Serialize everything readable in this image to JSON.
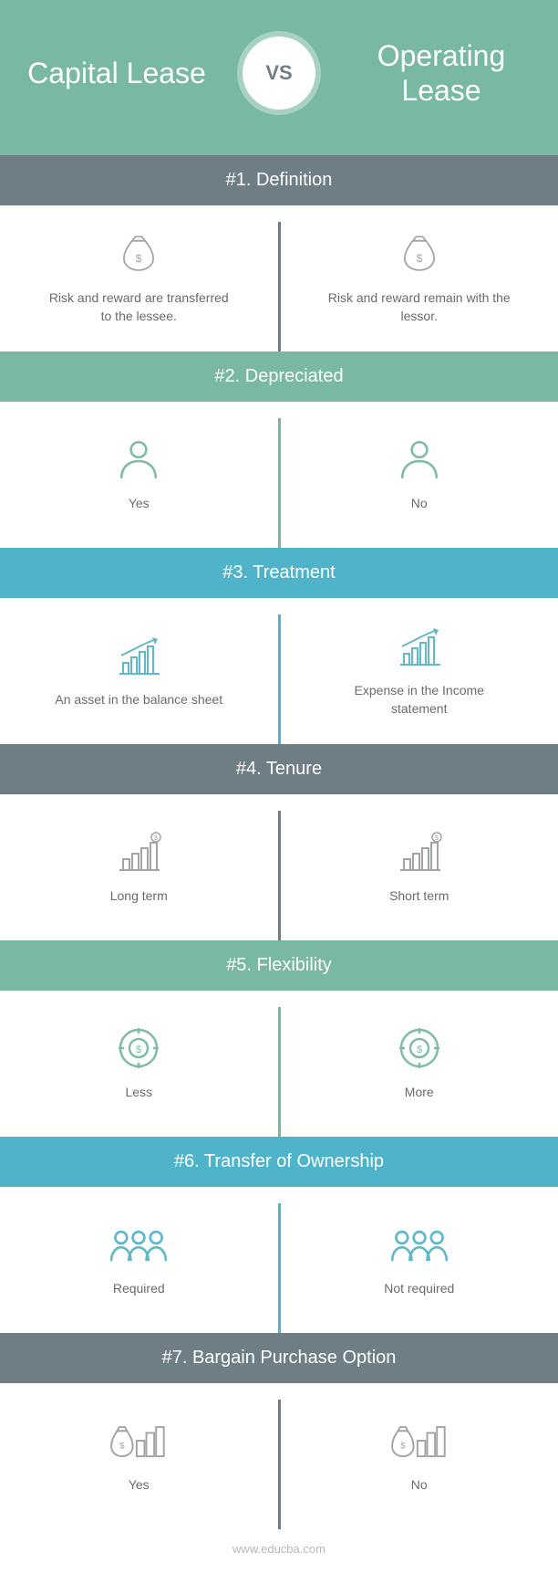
{
  "colors": {
    "teal": "#79b8a3",
    "slate": "#6f7d84",
    "cyan": "#4fb4c9",
    "icon_gray": "#9fa6a4",
    "icon_blue": "#5fb9c9",
    "icon_teal": "#7fbca7",
    "text": "#6b6b6b",
    "white": "#ffffff"
  },
  "header": {
    "left_title": "Capital Lease",
    "right_title": "Operating Lease",
    "vs_label": "VS",
    "vs_color": "#6f7d84",
    "background": "#79b8a3"
  },
  "sections": [
    {
      "heading": "#1. Definition",
      "heading_bg": "#6f7d84",
      "divider_color": "#6f7d84",
      "icon": "moneybag",
      "icon_color": "#9fa6a4",
      "left_text": "Risk and reward are transferred to the lessee.",
      "right_text": "Risk and reward remain with the lessor."
    },
    {
      "heading": "#2. Depreciated",
      "heading_bg": "#79b8a3",
      "divider_color": "#79b8a3",
      "icon": "person",
      "icon_color": "#7fbca7",
      "left_text": "Yes",
      "right_text": "No"
    },
    {
      "heading": "#3. Treatment",
      "heading_bg": "#4fb4c9",
      "divider_color": "#4fb4c9",
      "icon": "chart-arrow",
      "icon_color": "#5fb9c9",
      "left_text": "An asset in the balance sheet",
      "right_text": "Expense in the Income statement"
    },
    {
      "heading": "#4. Tenure",
      "heading_bg": "#6f7d84",
      "divider_color": "#6f7d84",
      "icon": "chart-dollar",
      "icon_color": "#9fa6a4",
      "left_text": "Long term",
      "right_text": "Short term"
    },
    {
      "heading": "#5. Flexibility",
      "heading_bg": "#79b8a3",
      "divider_color": "#79b8a3",
      "icon": "target-dollar",
      "icon_color": "#7fbca7",
      "left_text": "Less",
      "right_text": "More"
    },
    {
      "heading": "#6. Transfer of Ownership",
      "heading_bg": "#4fb4c9",
      "divider_color": "#4fb4c9",
      "icon": "group",
      "icon_color": "#5fb9c9",
      "left_text": "Required",
      "right_text": "Not required"
    },
    {
      "heading": "#7. Bargain Purchase Option",
      "heading_bg": "#6f7d84",
      "divider_color": "#6f7d84",
      "icon": "bag-buildings",
      "icon_color": "#9fa6a4",
      "left_text": "Yes",
      "right_text": "No"
    }
  ],
  "footer": {
    "text": "www.educba.com"
  }
}
